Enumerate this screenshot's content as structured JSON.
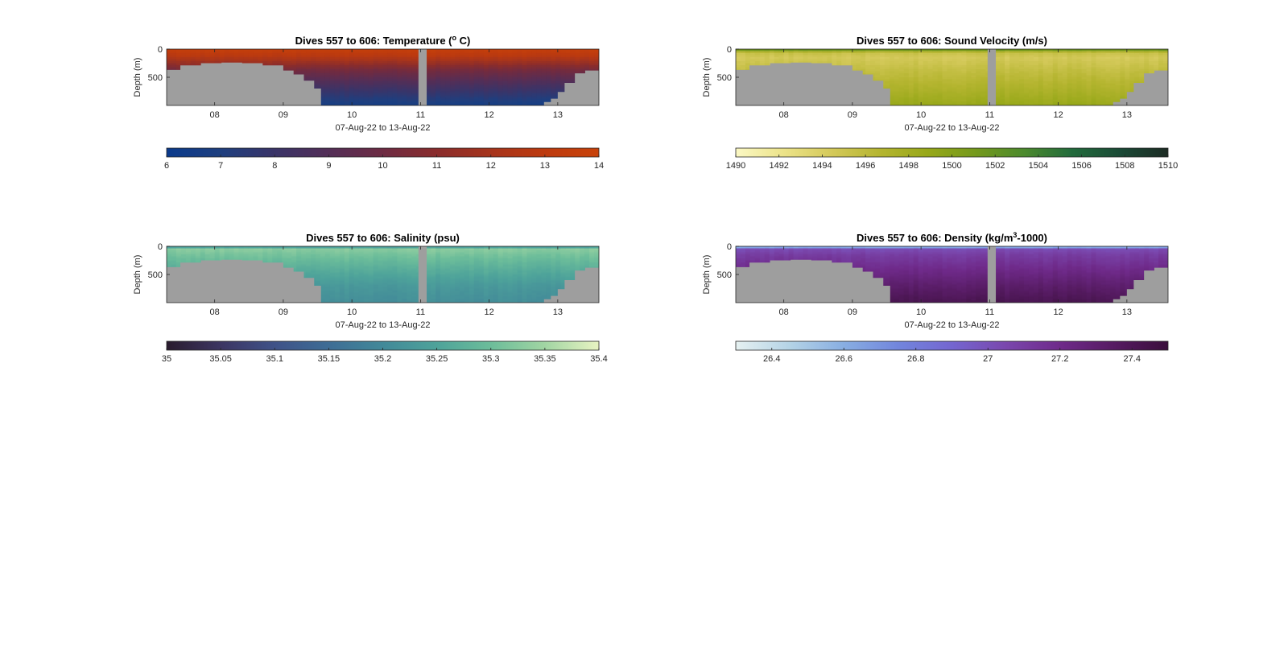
{
  "figure": {
    "background": "#ffffff",
    "land_color": "#9e9e9e",
    "axis_color": "#262626"
  },
  "chart_data": [
    {
      "type": "heatmap",
      "title": "Dives 557 to 606: Temperature (°C)",
      "title_parts": {
        "prefix": "Dives 557 to 606: Temperature (",
        "sup": "o",
        "suffix": " C)"
      },
      "xlabel": "07-Aug-22 to 13-Aug-22",
      "ylabel": "Depth (m)",
      "x_ticks": [
        "08",
        "09",
        "10",
        "11",
        "12",
        "13"
      ],
      "x_tick_values": [
        8,
        9,
        10,
        11,
        12,
        13
      ],
      "xlim": [
        7.3,
        13.6
      ],
      "y_ticks": [
        "0",
        "500"
      ],
      "y_tick_values": [
        0,
        500
      ],
      "ylim": [
        0,
        1000
      ],
      "y_reversed": true,
      "grid": false,
      "gap_x": [
        10.97,
        11.09
      ],
      "bathymetry": {
        "x": [
          7.3,
          7.5,
          7.8,
          8.1,
          8.4,
          8.7,
          9.0,
          9.15,
          9.3,
          9.45,
          9.55,
          12.7,
          12.8,
          12.9,
          13.0,
          13.1,
          13.25,
          13.4,
          13.6
        ],
        "depth": [
          370,
          290,
          250,
          240,
          250,
          290,
          380,
          450,
          560,
          700,
          1000,
          1000,
          940,
          880,
          760,
          600,
          430,
          380,
          390
        ]
      },
      "colorscale": [
        "#0a3a8c",
        "#1e3f7f",
        "#3a3468",
        "#532e57",
        "#6d2b43",
        "#8a2c2c",
        "#a6341c",
        "#bd3a0e",
        "#c8420a"
      ],
      "profile": {
        "depth": [
          0,
          120,
          350,
          700,
          1000
        ],
        "value": [
          13.6,
          12.8,
          10.4,
          8.2,
          6.6
        ]
      },
      "colorbar": {
        "ticks": [
          "6",
          "7",
          "8",
          "9",
          "10",
          "11",
          "12",
          "13",
          "14"
        ],
        "tick_values": [
          6,
          7,
          8,
          9,
          10,
          11,
          12,
          13,
          14
        ],
        "lim": [
          6,
          14
        ]
      }
    },
    {
      "type": "heatmap",
      "title": "Dives 557 to 606: Sound Velocity (m/s)",
      "title_parts": {
        "prefix": "Dives 557 to 606: Sound Velocity (m/s)",
        "sup": "",
        "suffix": ""
      },
      "xlabel": "07-Aug-22 to 13-Aug-22",
      "ylabel": "Depth (m)",
      "x_ticks": [
        "08",
        "09",
        "10",
        "11",
        "12",
        "13"
      ],
      "x_tick_values": [
        8,
        9,
        10,
        11,
        12,
        13
      ],
      "xlim": [
        7.3,
        13.6
      ],
      "y_ticks": [
        "0",
        "500"
      ],
      "y_tick_values": [
        0,
        500
      ],
      "ylim": [
        0,
        1000
      ],
      "y_reversed": true,
      "grid": false,
      "gap_x": [
        10.97,
        11.09
      ],
      "bathymetry": {
        "x": [
          7.3,
          7.5,
          7.8,
          8.1,
          8.4,
          8.7,
          9.0,
          9.15,
          9.3,
          9.45,
          9.55,
          12.7,
          12.8,
          12.9,
          13.0,
          13.1,
          13.25,
          13.4,
          13.6
        ],
        "depth": [
          370,
          290,
          250,
          240,
          250,
          290,
          380,
          450,
          560,
          700,
          1000,
          1000,
          940,
          880,
          760,
          600,
          430,
          380,
          390
        ]
      },
      "colorscale": [
        "#fbf8c4",
        "#ece389",
        "#d4c95a",
        "#b5b530",
        "#97a819",
        "#74991c",
        "#4c8a2d",
        "#226b3c",
        "#1a4a36",
        "#1d2b24"
      ],
      "profile": {
        "depth": [
          0,
          60,
          150,
          400,
          700,
          1000
        ],
        "value": [
          1503.5,
          1495.5,
          1494.5,
          1495.8,
          1497.2,
          1498.8
        ]
      },
      "colorbar": {
        "ticks": [
          "1490",
          "1492",
          "1494",
          "1496",
          "1498",
          "1500",
          "1502",
          "1504",
          "1506",
          "1508",
          "1510"
        ],
        "tick_values": [
          1490,
          1492,
          1494,
          1496,
          1498,
          1500,
          1502,
          1504,
          1506,
          1508,
          1510
        ],
        "lim": [
          1490,
          1510
        ]
      }
    },
    {
      "type": "heatmap",
      "title": "Dives 557 to 606: Salinity (psu)",
      "title_parts": {
        "prefix": "Dives 557 to 606: Salinity (psu)",
        "sup": "",
        "suffix": ""
      },
      "xlabel": "07-Aug-22 to 13-Aug-22",
      "ylabel": "Depth (m)",
      "x_ticks": [
        "08",
        "09",
        "10",
        "11",
        "12",
        "13"
      ],
      "x_tick_values": [
        8,
        9,
        10,
        11,
        12,
        13
      ],
      "xlim": [
        7.3,
        13.6
      ],
      "y_ticks": [
        "0",
        "500"
      ],
      "y_tick_values": [
        0,
        500
      ],
      "ylim": [
        0,
        1000
      ],
      "y_reversed": true,
      "grid": false,
      "gap_x": [
        10.97,
        11.09
      ],
      "bathymetry": {
        "x": [
          7.3,
          7.5,
          7.8,
          8.1,
          8.4,
          8.7,
          9.0,
          9.15,
          9.3,
          9.45,
          9.55,
          12.7,
          12.8,
          12.9,
          13.0,
          13.1,
          13.25,
          13.4,
          13.6
        ],
        "depth": [
          370,
          290,
          250,
          240,
          250,
          290,
          380,
          450,
          560,
          700,
          1000,
          1000,
          940,
          880,
          760,
          600,
          430,
          380,
          390
        ]
      },
      "colorscale": [
        "#2a1c2e",
        "#3c3562",
        "#3f5288",
        "#3e6d95",
        "#428999",
        "#4ea39a",
        "#6cbd9a",
        "#a1d5a3",
        "#e8f3c2"
      ],
      "profile": {
        "depth": [
          0,
          40,
          150,
          400,
          700,
          1000
        ],
        "value": [
          35.18,
          35.33,
          35.31,
          35.27,
          35.23,
          35.21
        ]
      },
      "colorbar": {
        "ticks": [
          "35",
          "35.05",
          "35.1",
          "35.15",
          "35.2",
          "35.25",
          "35.3",
          "35.35",
          "35.4"
        ],
        "tick_values": [
          35,
          35.05,
          35.1,
          35.15,
          35.2,
          35.25,
          35.3,
          35.35,
          35.4
        ],
        "lim": [
          35,
          35.4
        ]
      }
    },
    {
      "type": "heatmap",
      "title": "Dives 557 to 606: Density (kg/m³-1000)",
      "title_parts": {
        "prefix": "Dives 557 to 606: Density (kg/m",
        "sup": "3",
        "suffix": "-1000)"
      },
      "xlabel": "07-Aug-22 to 13-Aug-22",
      "ylabel": "Depth (m)",
      "x_ticks": [
        "08",
        "09",
        "10",
        "11",
        "12",
        "13"
      ],
      "x_tick_values": [
        8,
        9,
        10,
        11,
        12,
        13
      ],
      "xlim": [
        7.3,
        13.6
      ],
      "y_ticks": [
        "0",
        "500"
      ],
      "y_tick_values": [
        0,
        500
      ],
      "ylim": [
        0,
        1000
      ],
      "y_reversed": true,
      "grid": false,
      "gap_x": [
        10.97,
        11.09
      ],
      "bathymetry": {
        "x": [
          7.3,
          7.5,
          7.8,
          8.1,
          8.4,
          8.7,
          9.0,
          9.15,
          9.3,
          9.45,
          9.55,
          12.7,
          12.8,
          12.9,
          13.0,
          13.1,
          13.25,
          13.4,
          13.6
        ],
        "depth": [
          370,
          290,
          250,
          240,
          250,
          290,
          380,
          450,
          560,
          700,
          1000,
          1000,
          940,
          880,
          760,
          600,
          430,
          380,
          390
        ]
      },
      "colorscale": [
        "#e6f1f1",
        "#b4d3e6",
        "#88aee2",
        "#7286dd",
        "#7466d0",
        "#7a47ad",
        "#6f2a8a",
        "#561b62",
        "#3a0f3c"
      ],
      "profile": {
        "depth": [
          0,
          50,
          150,
          400,
          700,
          1000
        ],
        "value": [
          26.45,
          27.02,
          27.1,
          27.2,
          27.32,
          27.42
        ]
      },
      "colorbar": {
        "ticks": [
          "26.4",
          "26.6",
          "26.8",
          "27",
          "27.2",
          "27.4"
        ],
        "tick_values": [
          26.4,
          26.6,
          26.8,
          27,
          27.2,
          27.4
        ],
        "lim": [
          26.3,
          27.5
        ]
      }
    }
  ]
}
